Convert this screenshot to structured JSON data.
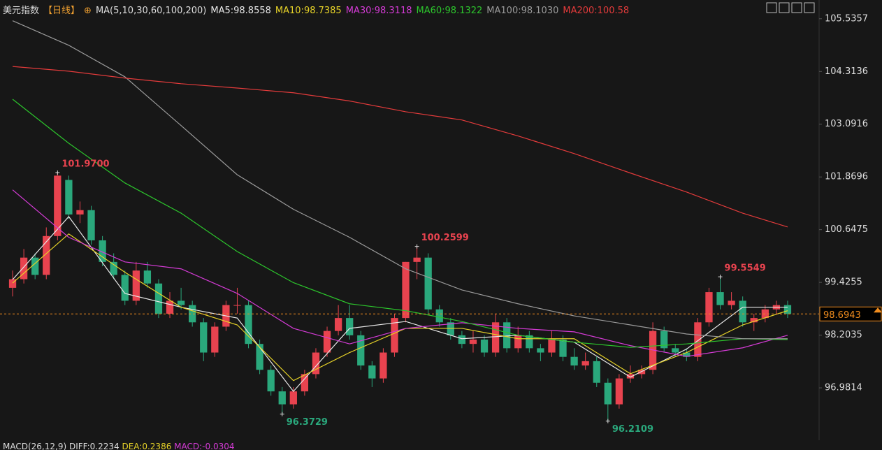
{
  "header": {
    "title": "美元指数",
    "period": "【日线】",
    "ma_params": "MA(5,10,30,60,100,200)"
  },
  "chart_data": {
    "type": "candlestick",
    "open": [
      99.3,
      99.5,
      100.0,
      99.6,
      100.5,
      101.8,
      101.0,
      101.1,
      100.4,
      99.9,
      99.6,
      99.0,
      99.7,
      99.4,
      98.7,
      99.0,
      98.9,
      98.5,
      97.8,
      98.4,
      98.9,
      98.9,
      98.0,
      97.4,
      96.9,
      96.6,
      96.9,
      97.3,
      97.8,
      98.3,
      98.6,
      98.2,
      97.5,
      97.2,
      97.8,
      98.6,
      99.9,
      100.0,
      98.8,
      98.5,
      98.2,
      98.0,
      98.1,
      97.8,
      98.5,
      97.9,
      98.2,
      97.9,
      97.8,
      98.1,
      97.7,
      97.5,
      97.6,
      97.1,
      96.6,
      97.2,
      97.3,
      97.4,
      98.3,
      97.9,
      97.8,
      97.7,
      98.5,
      99.2,
      98.9,
      99.0,
      98.5,
      98.6,
      98.8,
      98.9
    ],
    "high": [
      99.7,
      100.2,
      100.1,
      100.7,
      101.97,
      101.9,
      101.3,
      101.2,
      100.5,
      100.1,
      99.7,
      99.9,
      99.9,
      99.5,
      99.2,
      99.3,
      99.0,
      98.6,
      98.5,
      99.0,
      99.3,
      99.0,
      98.1,
      97.5,
      97.0,
      97.0,
      97.4,
      97.9,
      98.4,
      98.9,
      98.9,
      98.3,
      97.6,
      97.9,
      98.7,
      99.9,
      100.2599,
      100.1,
      98.9,
      98.6,
      98.3,
      98.3,
      98.2,
      98.7,
      98.6,
      98.4,
      98.3,
      98.0,
      98.3,
      98.2,
      97.9,
      97.8,
      97.7,
      97.2,
      97.3,
      97.5,
      97.5,
      98.5,
      98.4,
      98.0,
      97.9,
      98.6,
      99.3,
      99.5549,
      99.2,
      99.1,
      98.7,
      98.9,
      99.0,
      99.0
    ],
    "low": [
      99.1,
      99.4,
      99.5,
      99.5,
      100.4,
      100.9,
      100.8,
      100.3,
      99.8,
      99.5,
      98.9,
      98.9,
      99.3,
      98.6,
      98.6,
      98.8,
      98.4,
      97.6,
      97.7,
      98.3,
      98.7,
      97.9,
      97.3,
      96.8,
      96.3729,
      96.5,
      96.8,
      97.2,
      97.7,
      98.2,
      98.1,
      97.4,
      97.0,
      97.1,
      97.7,
      98.5,
      99.5,
      98.7,
      98.4,
      98.1,
      97.9,
      97.8,
      97.7,
      97.7,
      97.8,
      97.8,
      97.8,
      97.6,
      97.7,
      97.6,
      97.4,
      97.4,
      97.0,
      96.2109,
      96.5,
      97.1,
      97.2,
      97.3,
      97.8,
      97.7,
      97.6,
      97.6,
      98.4,
      98.8,
      98.8,
      98.4,
      98.3,
      98.5,
      98.7,
      98.6
    ],
    "close": [
      99.5,
      100.0,
      99.6,
      100.5,
      101.9,
      101.0,
      101.1,
      100.4,
      99.9,
      99.6,
      99.0,
      99.7,
      99.4,
      98.7,
      99.0,
      98.9,
      98.5,
      97.8,
      98.4,
      98.9,
      98.9,
      98.0,
      97.4,
      96.9,
      96.6,
      96.9,
      97.3,
      97.8,
      98.3,
      98.6,
      98.2,
      97.5,
      97.2,
      97.8,
      98.6,
      99.9,
      100.0,
      98.8,
      98.5,
      98.2,
      98.0,
      98.1,
      97.8,
      98.5,
      97.9,
      98.2,
      97.9,
      97.8,
      98.1,
      97.7,
      97.5,
      97.6,
      97.1,
      96.6,
      97.2,
      97.3,
      97.4,
      98.3,
      97.9,
      97.8,
      97.7,
      98.5,
      99.2,
      98.9,
      99.0,
      98.5,
      98.6,
      98.8,
      98.9,
      98.6943
    ],
    "up_color": "#e8434f",
    "down_color": "#2aa87c",
    "ylim": [
      95.93,
      105.97
    ],
    "yticks": [
      105.5357,
      104.3136,
      103.0916,
      101.8696,
      100.6475,
      99.4255,
      98.2035,
      96.9814
    ],
    "current_price": 98.6943,
    "current_price_color": "#f08c1e",
    "ma_x": [
      0,
      5,
      10,
      15,
      20,
      25,
      30,
      35,
      40,
      45,
      50,
      55,
      60,
      65,
      69
    ],
    "series": [
      {
        "name": "MA5:98.8558",
        "color": "#e8e8e8",
        "values": [
          99.49,
          100.95,
          99.17,
          98.85,
          98.6,
          96.9,
          98.36,
          98.52,
          98.12,
          98.2,
          98.04,
          97.23,
          97.88,
          98.85,
          98.85
        ]
      },
      {
        "name": "MA10:98.7385",
        "color": "#e6d228",
        "values": [
          99.41,
          100.55,
          99.66,
          98.85,
          98.44,
          97.15,
          97.8,
          98.36,
          98.36,
          98.12,
          98.12,
          97.31,
          97.8,
          98.44,
          98.77
        ]
      },
      {
        "name": "MA30:98.3118",
        "color": "#d53bd6",
        "values": [
          101.57,
          100.47,
          99.9,
          99.74,
          99.17,
          98.36,
          98.0,
          98.36,
          98.49,
          98.36,
          98.28,
          97.96,
          97.71,
          97.91,
          98.2
        ]
      },
      {
        "name": "MA60:98.1322",
        "color": "#2cc52c",
        "values": [
          103.67,
          102.65,
          101.73,
          101.03,
          100.14,
          99.42,
          98.93,
          98.77,
          98.52,
          98.2,
          98.04,
          97.92,
          98.0,
          98.12,
          98.1
        ]
      },
      {
        "name": "MA100:98.1030",
        "color": "#9a9a9a",
        "values": [
          105.49,
          104.92,
          104.19,
          103.06,
          101.92,
          101.12,
          100.47,
          99.74,
          99.25,
          98.93,
          98.65,
          98.44,
          98.23,
          98.12,
          98.12
        ]
      },
      {
        "name": "MA200:100.58",
        "color": "#e33b3b",
        "values": [
          104.43,
          104.32,
          104.16,
          104.03,
          103.93,
          103.82,
          103.63,
          103.38,
          103.19,
          102.82,
          102.41,
          101.96,
          101.52,
          101.03,
          100.71
        ]
      }
    ],
    "annotations": [
      {
        "value": 101.97,
        "label": "101.9700"
      },
      {
        "value": 96.3729,
        "label": "96.3729"
      },
      {
        "value": 100.2599,
        "label": "100.2599"
      },
      {
        "value": 96.2109,
        "label": "96.2109"
      },
      {
        "value": 99.5549,
        "label": "99.5549"
      }
    ],
    "macd_label": "MACD(26,12,9)",
    "macd_values": [
      "DIFF:0.2234",
      "DEA:0.2386",
      "MACD:-0.0304"
    ]
  }
}
